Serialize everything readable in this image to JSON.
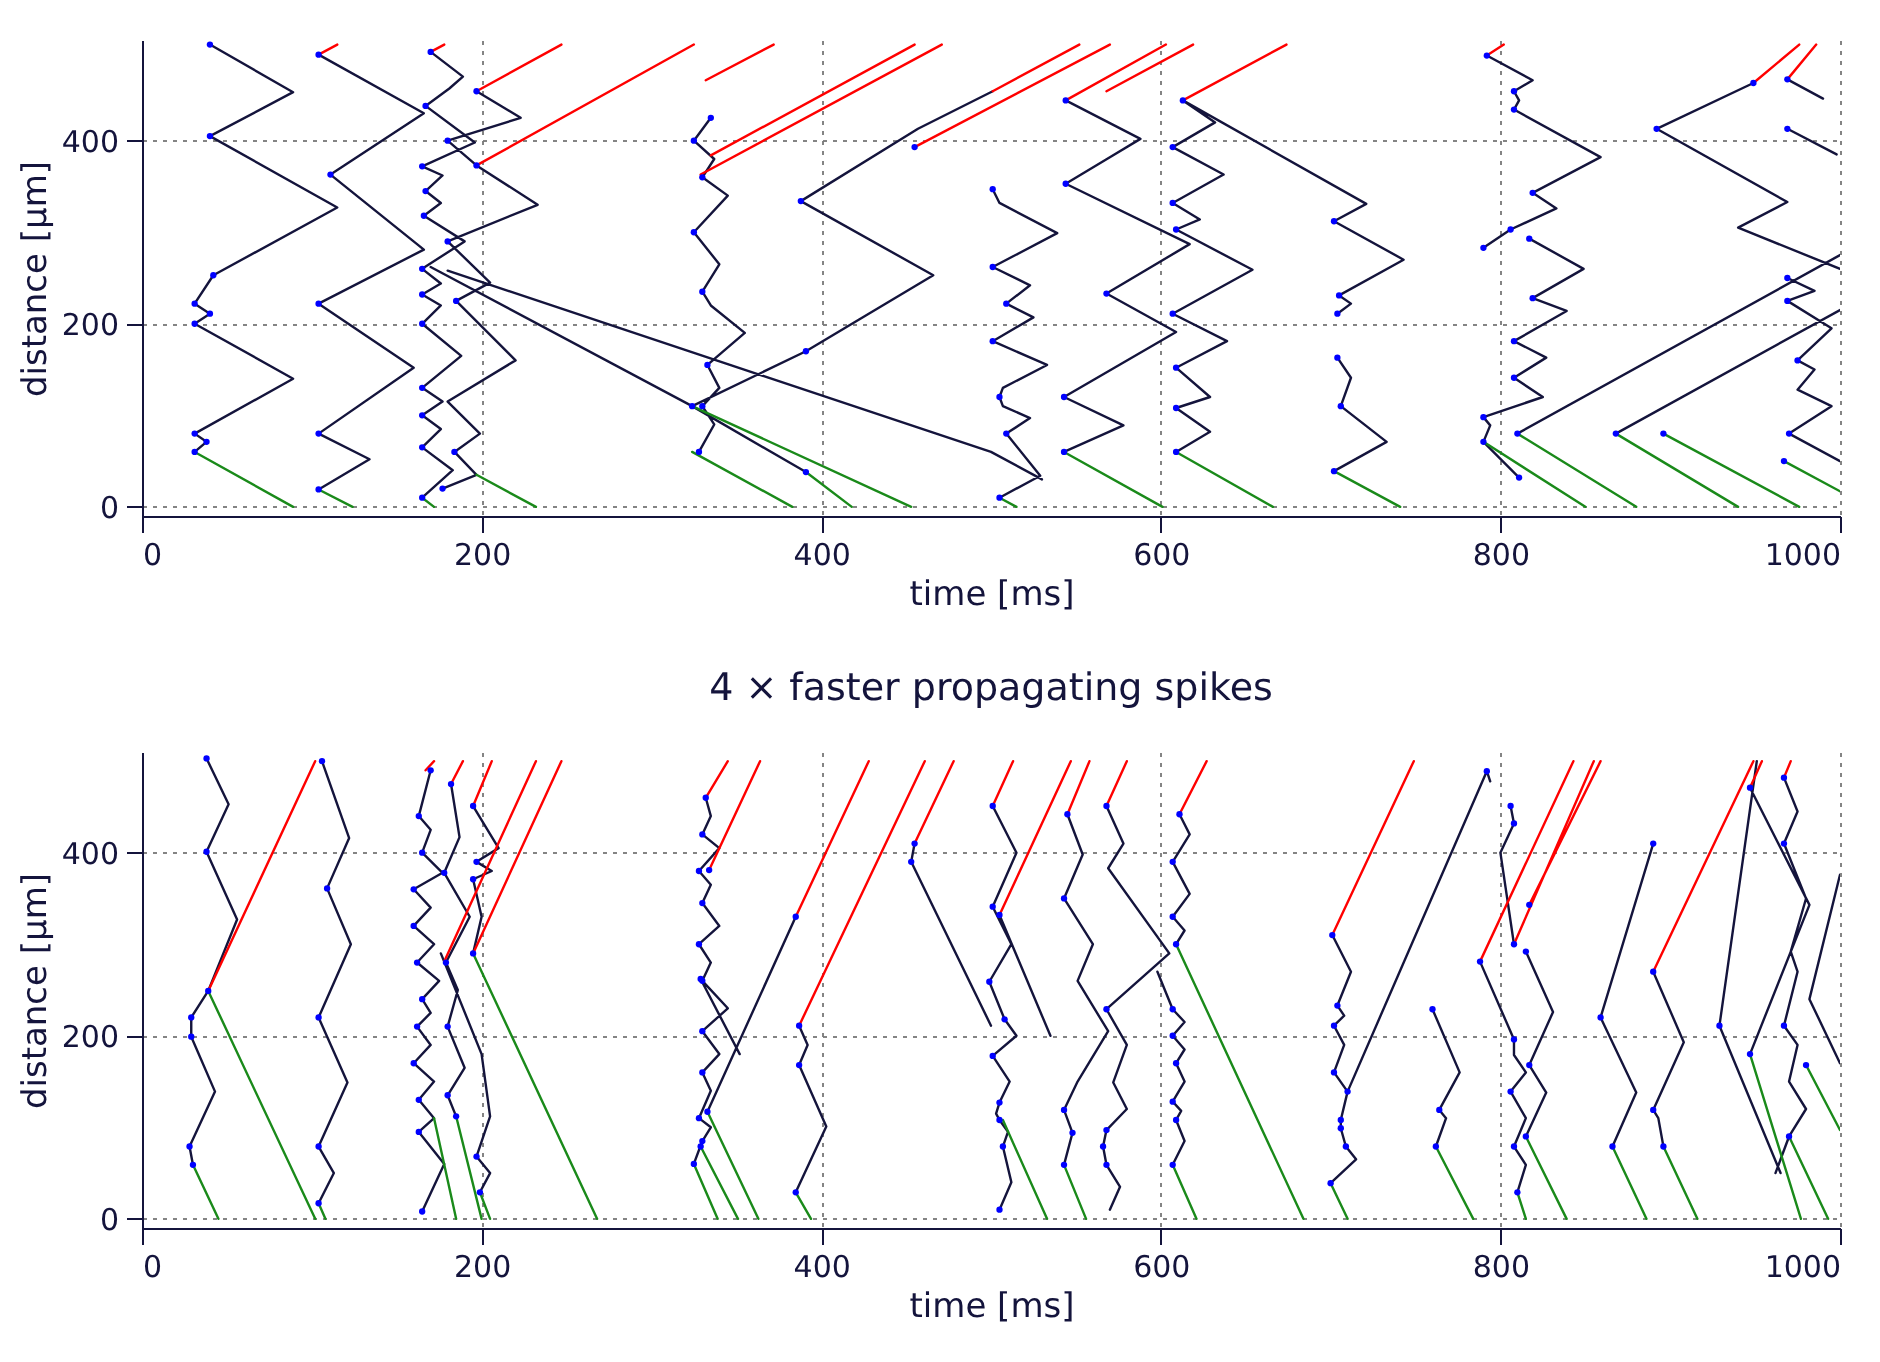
{
  "chart_data": [
    {
      "type": "line",
      "xlabel": "time [ms]",
      "ylabel": "distance [µm]",
      "xlim": [
        0,
        1000
      ],
      "xticks": [
        0,
        200,
        400,
        600,
        800,
        1000
      ],
      "ylim": [
        -10,
        510
      ],
      "yticks": [
        0,
        200,
        400
      ],
      "grid": true,
      "line_style": "solid",
      "series": [
        {
          "type": "line",
          "color": "#14143c",
          "x": [
            40,
            89,
            40,
            115,
            42,
            31,
            40,
            31,
            89,
            31,
            38,
            31,
            null,
            104,
            166,
            111,
            166,
            104,
            160,
            104,
            134,
            104,
            null,
            170,
            189,
            181,
            167,
            196,
            165,
            177,
            167,
            176,
            166,
            190,
            165,
            176,
            165,
            176,
            165,
            188,
            165,
            177,
            165,
            176,
            165,
            183,
            165,
            null,
            197,
            223,
            180,
            197,
            233,
            180,
            205,
            185,
            220,
            180,
            199,
            184,
            197,
            177,
            null,
            170,
            324,
            391,
            null,
            180,
            500,
            530,
            null,
            335,
            325,
            337,
            330,
            345,
            325,
            340,
            330,
            335,
            355,
            333,
            340,
            330,
            337,
            328,
            null,
            324,
            391,
            466,
            388,
            457,
            501,
            null,
            501,
            505,
            539,
            501,
            523,
            509,
            525,
            501,
            533,
            507,
            505,
            507,
            523,
            509,
            529,
            505,
            null,
            544,
            588,
            570,
            544,
            617,
            568,
            609,
            543,
            578,
            543,
            null,
            613,
            632,
            607,
            637,
            607,
            623,
            609,
            654,
            607,
            639,
            609,
            629,
            609,
            629,
            609,
            null,
            613,
            721,
            702,
            743,
            705,
            712,
            704,
            null,
            704,
            712,
            706,
            733,
            702,
            null,
            792,
            819,
            808,
            811,
            808,
            859,
            819,
            833,
            806,
            790,
            null,
            817,
            849,
            819,
            839,
            808,
            827,
            808,
            825,
            790,
            794,
            790,
            811,
            null,
            810,
            1000,
            null,
            868,
            1000,
            null,
            969,
            990,
            null,
            949,
            892,
            969,
            940,
            1000,
            null,
            969,
            998,
            null,
            969,
            985,
            969,
            995,
            975,
            985,
            975,
            995,
            970,
            1000
          ],
          "values": [
            505,
            453,
            405,
            327,
            253,
            222,
            211,
            200,
            140,
            80,
            71,
            60,
            null,
            494,
            430,
            363,
            281,
            222,
            152,
            80,
            52,
            19,
            null,
            497,
            470,
            457,
            438,
            398,
            372,
            362,
            345,
            332,
            318,
            290,
            260,
            244,
            232,
            220,
            200,
            165,
            130,
            115,
            100,
            85,
            65,
            40,
            10,
            null,
            454,
            425,
            400,
            373,
            330,
            290,
            245,
            225,
            160,
            115,
            80,
            60,
            35,
            20,
            null,
            262,
            110,
            38,
            null,
            258,
            60,
            30,
            null,
            425,
            400,
            380,
            360,
            340,
            300,
            265,
            235,
            220,
            190,
            155,
            130,
            110,
            90,
            60,
            null,
            110,
            170,
            253,
            334,
            413,
            454,
            null,
            347,
            332,
            299,
            262,
            242,
            222,
            207,
            181,
            155,
            130,
            120,
            110,
            97,
            80,
            34,
            10,
            null,
            444,
            402,
            382,
            353,
            287,
            233,
            191,
            120,
            89,
            60,
            null,
            444,
            420,
            393,
            363,
            332,
            314,
            303,
            259,
            211,
            181,
            152,
            120,
            108,
            82,
            60,
            null,
            444,
            331,
            312,
            270,
            231,
            222,
            211,
            null,
            163,
            141,
            110,
            71,
            39,
            null,
            493,
            466,
            454,
            444,
            434,
            382,
            343,
            326,
            303,
            283,
            null,
            293,
            260,
            228,
            214,
            181,
            163,
            141,
            120,
            98,
            89,
            71,
            32,
            null,
            80,
            275,
            null,
            80,
            215,
            null,
            467,
            446,
            null,
            463,
            413,
            333,
            305,
            260,
            null,
            413,
            385,
            null,
            250,
            236,
            225,
            195,
            160,
            150,
            128,
            110,
            80,
            50
          ]
        },
        {
          "type": "line",
          "color": "#ff0000",
          "x": [
            104,
            115,
            null,
            170,
            178,
            null,
            197,
            247,
            null,
            197,
            325,
            null,
            332,
            372,
            null,
            335,
            455,
            null,
            329,
            471,
            null,
            455,
            570,
            null,
            501,
            552,
            null,
            544,
            603,
            null,
            568,
            619,
            null,
            613,
            674,
            null,
            792,
            802,
            null,
            949,
            976,
            null,
            969,
            986
          ],
          "values": [
            494,
            505,
            null,
            497,
            505,
            null,
            454,
            505,
            null,
            373,
            505,
            null,
            466,
            505,
            null,
            384,
            505,
            null,
            363,
            505,
            null,
            393,
            505,
            null,
            454,
            505,
            null,
            444,
            505,
            null,
            454,
            505,
            null,
            444,
            505,
            null,
            493,
            505,
            null,
            463,
            505,
            null,
            467,
            505
          ]
        },
        {
          "type": "line",
          "color": "#1a8a1a",
          "x": [
            31,
            89,
            null,
            104,
            124,
            null,
            165,
            172,
            null,
            197,
            232,
            null,
            324,
            453,
            null,
            324,
            383,
            null,
            391,
            418,
            null,
            505,
            515,
            null,
            543,
            601,
            null,
            609,
            666,
            null,
            702,
            741,
            null,
            790,
            850,
            null,
            810,
            880,
            null,
            868,
            940,
            null,
            896,
            976,
            null,
            967,
            1000
          ],
          "values": [
            60,
            0,
            null,
            19,
            0,
            null,
            10,
            0,
            null,
            35,
            0,
            null,
            110,
            0,
            null,
            60,
            0,
            null,
            38,
            0,
            null,
            10,
            0,
            null,
            60,
            0,
            null,
            60,
            0,
            null,
            39,
            0,
            null,
            71,
            0,
            null,
            80,
            0,
            null,
            80,
            0,
            null,
            80,
            0,
            null,
            50,
            17
          ]
        },
        {
          "type": "scatter",
          "color": "#0000ff",
          "marker": "circle",
          "x": [
            40,
            40,
            42,
            31,
            40,
            31,
            31,
            38,
            31,
            104,
            111,
            104,
            104,
            104,
            170,
            167,
            165,
            167,
            166,
            165,
            165,
            165,
            165,
            165,
            165,
            165,
            197,
            180,
            197,
            180,
            185,
            184,
            177,
            335,
            325,
            330,
            325,
            330,
            333,
            330,
            328,
            324,
            388,
            391,
            391,
            455,
            501,
            501,
            509,
            501,
            505,
            509,
            505,
            544,
            544,
            568,
            543,
            543,
            613,
            607,
            607,
            609,
            607,
            609,
            609,
            609,
            702,
            705,
            704,
            704,
            706,
            702,
            792,
            808,
            808,
            819,
            806,
            790,
            817,
            819,
            808,
            808,
            790,
            790,
            811,
            810,
            868,
            896,
            892,
            949,
            969,
            969,
            969,
            969,
            975,
            970,
            967
          ],
          "values": [
            505,
            405,
            253,
            222,
            211,
            200,
            80,
            71,
            60,
            494,
            363,
            222,
            80,
            19,
            497,
            438,
            372,
            345,
            318,
            260,
            232,
            200,
            130,
            100,
            65,
            10,
            454,
            400,
            373,
            290,
            225,
            60,
            20,
            425,
            400,
            360,
            300,
            235,
            155,
            110,
            60,
            110,
            334,
            170,
            38,
            393,
            347,
            262,
            222,
            181,
            120,
            80,
            10,
            444,
            353,
            233,
            120,
            60,
            444,
            393,
            332,
            303,
            211,
            152,
            108,
            60,
            312,
            231,
            211,
            163,
            110,
            39,
            493,
            454,
            434,
            343,
            303,
            283,
            293,
            228,
            181,
            141,
            98,
            71,
            32,
            80,
            80,
            80,
            413,
            463,
            467,
            413,
            250,
            225,
            160,
            80,
            50
          ]
        }
      ]
    },
    {
      "type": "line",
      "title": "4 × faster propagating spikes",
      "xlabel": "time [ms]",
      "ylabel": "distance [µm]",
      "xlim": [
        0,
        1000
      ],
      "xticks": [
        0,
        200,
        400,
        600,
        800,
        1000
      ],
      "ylim": [
        -10,
        510
      ],
      "yticks": [
        0,
        200,
        400
      ],
      "grid": true,
      "line_style": "solid",
      "series": [
        {
          "type": "line",
          "color": "#14143c",
          "x": [
            38,
            51,
            38,
            56,
            39,
            29,
            29,
            43,
            28,
            30,
            null,
            106,
            122,
            109,
            123,
            104,
            121,
            104,
            113,
            104,
            null,
            170,
            163,
            170,
            165,
            177,
            160,
            170,
            160,
            172,
            162,
            175,
            165,
            170,
            162,
            170,
            160,
            172,
            163,
            172,
            163,
            178,
            165,
            null,
            182,
            187,
            178,
            193,
            179,
            186,
            180,
            190,
            180,
            185,
            null,
            195,
            210,
            197,
            206,
            195,
            200,
            195,
            null,
            176,
            200,
            205,
            197,
            205,
            199,
            null,
            332,
            335,
            330,
            340,
            328,
            335,
            330,
            340,
            328,
            335,
            330,
            345,
            330,
            340,
            330,
            335,
            328,
            335,
            330,
            325,
            null,
            333,
            385,
            null,
            329,
            352,
            null,
            387,
            392,
            387,
            403,
            385,
            null,
            455,
            453,
            500,
            null,
            501,
            515,
            501,
            512,
            499,
            508,
            515,
            501,
            511,
            505,
            503,
            505,
            510,
            507,
            512,
            505,
            null,
            505,
            535,
            null,
            545,
            554,
            543,
            560,
            551,
            569,
            551,
            543,
            548,
            543,
            null,
            568,
            578,
            569,
            605,
            568,
            580,
            572,
            580,
            568,
            566,
            568,
            576,
            570,
            null,
            611,
            617,
            607,
            617,
            607,
            614,
            609,
            null,
            598,
            607,
            614,
            607,
            614,
            609,
            614,
            607,
            612,
            609,
            614,
            607,
            null,
            701,
            712,
            704,
            708,
            702,
            708,
            702,
            710,
            706,
            706,
            709,
            715,
            700,
            null,
            710,
            792,
            794,
            null,
            760,
            776,
            764,
            768,
            762,
            null,
            788,
            808,
            808,
            815,
            806,
            815,
            808,
            815,
            810,
            null,
            815,
            831,
            817,
            827,
            815,
            null,
            806,
            808,
            800,
            808,
            null,
            890,
            859,
            880,
            866,
            null,
            890,
            908,
            890,
            893,
            896,
            null,
            951,
            929,
            965,
            null,
            947,
            982,
            947,
            null,
            967,
            975,
            967,
            980,
            971,
            975,
            967,
            975,
            970,
            980,
            970,
            962,
            null,
            1000,
            982,
            1000
          ],
          "values": [
            503,
            453,
            401,
            327,
            249,
            220,
            199,
            139,
            79,
            59,
            null,
            500,
            416,
            361,
            300,
            220,
            149,
            79,
            50,
            17,
            null,
            490,
            440,
            425,
            400,
            378,
            360,
            340,
            320,
            300,
            280,
            260,
            240,
            225,
            210,
            190,
            170,
            150,
            130,
            110,
            95,
            60,
            8,
            null,
            475,
            417,
            378,
            330,
            280,
            250,
            210,
            165,
            135,
            112,
            null,
            451,
            405,
            390,
            380,
            371,
            330,
            290,
            null,
            290,
            180,
            112,
            68,
            50,
            29,
            null,
            460,
            440,
            420,
            405,
            380,
            365,
            345,
            320,
            300,
            280,
            260,
            230,
            205,
            180,
            160,
            140,
            110,
            100,
            85,
            60,
            null,
            117,
            330,
            null,
            262,
            180,
            null,
            211,
            190,
            168,
            101,
            29,
            null,
            410,
            390,
            211,
            null,
            451,
            400,
            341,
            300,
            259,
            218,
            200,
            178,
            150,
            127,
            115,
            108,
            95,
            79,
            40,
            10,
            null,
            332,
            200,
            null,
            442,
            398,
            350,
            300,
            260,
            205,
            150,
            119,
            94,
            59,
            null,
            451,
            410,
            383,
            290,
            229,
            190,
            149,
            120,
            97,
            79,
            59,
            35,
            10,
            null,
            442,
            420,
            390,
            355,
            330,
            315,
            300,
            null,
            270,
            229,
            215,
            200,
            185,
            170,
            150,
            128,
            118,
            108,
            85,
            59,
            null,
            310,
            270,
            233,
            222,
            211,
            190,
            160,
            139,
            108,
            99,
            79,
            65,
            39,
            null,
            139,
            489,
            478,
            null,
            229,
            160,
            119,
            110,
            79,
            null,
            281,
            196,
            179,
            160,
            139,
            110,
            79,
            59,
            29,
            null,
            292,
            226,
            168,
            138,
            90,
            null,
            451,
            432,
            400,
            300,
            null,
            410,
            220,
            138,
            79,
            null,
            270,
            193,
            119,
            110,
            79,
            null,
            500,
            211,
            50,
            null,
            471,
            343,
            180,
            null,
            482,
            445,
            410,
            350,
            292,
            270,
            211,
            190,
            150,
            120,
            90,
            50,
            null,
            376,
            240,
            170
          ]
        },
        {
          "type": "line",
          "color": "#ff0000",
          "x": [
            39,
            102,
            null,
            167,
            172,
            null,
            182,
            189,
            null,
            195,
            206,
            null,
            178,
            232,
            null,
            195,
            247,
            null,
            332,
            345,
            null,
            334,
            364,
            null,
            385,
            428,
            null,
            387,
            461,
            null,
            455,
            478,
            null,
            501,
            513,
            null,
            505,
            547,
            null,
            545,
            558,
            null,
            568,
            580,
            null,
            611,
            627,
            null,
            701,
            749,
            null,
            788,
            843,
            null,
            808,
            855,
            null,
            817,
            859,
            null,
            890,
            949,
            null,
            967,
            971,
            null,
            947,
            954
          ],
          "values": [
            249,
            500,
            null,
            490,
            500,
            null,
            475,
            500,
            null,
            451,
            500,
            null,
            281,
            500,
            null,
            290,
            500,
            null,
            460,
            500,
            null,
            381,
            500,
            null,
            330,
            500,
            null,
            211,
            500,
            null,
            410,
            500,
            null,
            451,
            500,
            null,
            332,
            500,
            null,
            442,
            500,
            null,
            451,
            500,
            null,
            442,
            500,
            null,
            310,
            500,
            null,
            281,
            500,
            null,
            300,
            500,
            null,
            343,
            500,
            null,
            270,
            500,
            null,
            482,
            500,
            null,
            471,
            500
          ]
        },
        {
          "type": "line",
          "color": "#1a8a1a",
          "x": [
            30,
            45,
            null,
            39,
            102,
            null,
            104,
            108,
            null,
            172,
            185,
            null,
            185,
            200,
            null,
            199,
            205,
            null,
            195,
            268,
            null,
            325,
            339,
            null,
            329,
            351,
            null,
            333,
            363,
            null,
            385,
            394,
            null,
            507,
            533,
            null,
            543,
            556,
            null,
            609,
            684,
            null,
            607,
            621,
            null,
            700,
            710,
            null,
            762,
            784,
            null,
            810,
            815,
            null,
            815,
            839,
            null,
            866,
            886,
            null,
            896,
            916,
            null,
            947,
            977,
            null,
            970,
            993,
            null,
            980,
            1000
          ],
          "values": [
            59,
            0,
            null,
            249,
            0,
            null,
            17,
            0,
            null,
            110,
            0,
            null,
            112,
            0,
            null,
            29,
            0,
            null,
            290,
            0,
            null,
            60,
            0,
            null,
            79,
            0,
            null,
            117,
            0,
            null,
            29,
            0,
            null,
            108,
            0,
            null,
            59,
            0,
            null,
            300,
            0,
            null,
            59,
            0,
            null,
            39,
            0,
            null,
            79,
            0,
            null,
            29,
            0,
            null,
            90,
            0,
            null,
            79,
            0,
            null,
            79,
            0,
            null,
            180,
            0,
            null,
            90,
            0,
            null,
            168,
            97
          ]
        },
        {
          "type": "scatter",
          "color": "#0000ff",
          "marker": "circle",
          "x": [
            38,
            38,
            39,
            29,
            29,
            28,
            30,
            106,
            109,
            104,
            104,
            104,
            170,
            163,
            165,
            160,
            160,
            162,
            165,
            162,
            160,
            163,
            163,
            165,
            182,
            178,
            179,
            180,
            180,
            185,
            195,
            197,
            195,
            195,
            197,
            199,
            332,
            330,
            328,
            330,
            328,
            330,
            330,
            330,
            328,
            330,
            325,
            329,
            333,
            329,
            334,
            385,
            387,
            387,
            385,
            455,
            453,
            501,
            501,
            499,
            508,
            501,
            505,
            505,
            507,
            505,
            505,
            545,
            543,
            543,
            548,
            543,
            568,
            568,
            568,
            566,
            568,
            611,
            607,
            607,
            609,
            607,
            607,
            609,
            607,
            609,
            607,
            701,
            704,
            702,
            702,
            710,
            706,
            706,
            709,
            700,
            792,
            760,
            764,
            762,
            788,
            808,
            806,
            808,
            810,
            806,
            808,
            808,
            815,
            817,
            817,
            815,
            859,
            866,
            890,
            890,
            890,
            896,
            929,
            947,
            947,
            967,
            967,
            967,
            970,
            980
          ],
          "values": [
            503,
            401,
            249,
            220,
            199,
            79,
            59,
            500,
            361,
            220,
            79,
            17,
            490,
            440,
            400,
            360,
            320,
            280,
            240,
            210,
            170,
            130,
            95,
            8,
            475,
            378,
            280,
            210,
            135,
            112,
            451,
            390,
            371,
            290,
            68,
            29,
            460,
            420,
            380,
            345,
            300,
            260,
            205,
            160,
            110,
            85,
            60,
            79,
            117,
            262,
            381,
            330,
            211,
            168,
            29,
            410,
            390,
            451,
            341,
            259,
            218,
            178,
            127,
            108,
            79,
            10,
            332,
            442,
            350,
            119,
            94,
            59,
            451,
            229,
            97,
            79,
            59,
            442,
            390,
            330,
            300,
            229,
            200,
            170,
            128,
            108,
            59,
            310,
            233,
            211,
            160,
            139,
            108,
            99,
            79,
            39,
            489,
            229,
            119,
            79,
            281,
            196,
            139,
            79,
            29,
            451,
            432,
            300,
            292,
            343,
            168,
            90,
            220,
            79,
            410,
            270,
            119,
            79,
            211,
            471,
            180,
            482,
            410,
            211,
            90,
            168
          ]
        }
      ]
    }
  ]
}
